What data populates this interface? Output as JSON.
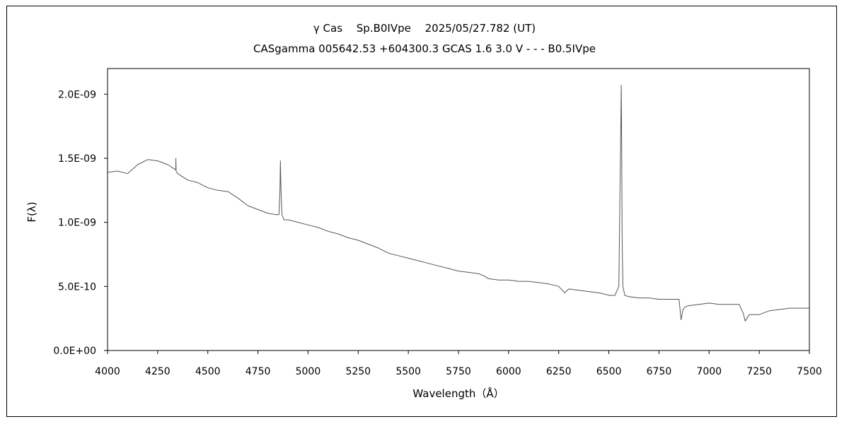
{
  "chart_data": {
    "type": "line",
    "title": "γ Cas　 Sp.B0IVpe　 2025/05/27.782 (UT)",
    "subtitle": "CASgamma 005642.53 +604300.3 GCAS 1.6 3.0 V - - - B0.5IVpe",
    "xlabel": "Wavelength（Å）",
    "ylabel": "F(λ)",
    "xlim": [
      4000,
      7500
    ],
    "ylim": [
      0,
      2.2e-09
    ],
    "x_ticks": [
      4000,
      4250,
      4500,
      4750,
      5000,
      5250,
      5500,
      5750,
      6000,
      6250,
      6500,
      6750,
      7000,
      7250,
      7500
    ],
    "x_tick_labels": [
      "4000",
      "4250",
      "4500",
      "4750",
      "5000",
      "5250",
      "5500",
      "5750",
      "6000",
      "6250",
      "6500",
      "6750",
      "7000",
      "7250",
      "7500"
    ],
    "y_ticks": [
      0,
      5e-10,
      1e-09,
      1.5e-09,
      2e-09
    ],
    "y_tick_labels": [
      "0.0E+00",
      "5.0E-10",
      "1.0E-09",
      "1.5E-09",
      "2.0E-09"
    ],
    "grid": false,
    "legend": "none",
    "series": [
      {
        "color": "#555555",
        "x": [
          4000,
          4050,
          4100,
          4150,
          4200,
          4250,
          4300,
          4340,
          4341,
          4342,
          4350,
          4400,
          4450,
          4500,
          4550,
          4600,
          4650,
          4700,
          4750,
          4800,
          4840,
          4855,
          4860,
          4862,
          4865,
          4870,
          4880,
          4900,
          4950,
          5000,
          5050,
          5100,
          5150,
          5200,
          5250,
          5300,
          5350,
          5400,
          5450,
          5500,
          5550,
          5600,
          5650,
          5700,
          5750,
          5800,
          5850,
          5880,
          5900,
          5950,
          6000,
          6050,
          6100,
          6150,
          6200,
          6250,
          6280,
          6300,
          6350,
          6400,
          6450,
          6480,
          6500,
          6530,
          6550,
          6555,
          6560,
          6562,
          6564,
          6566,
          6570,
          6580,
          6600,
          6650,
          6700,
          6750,
          6850,
          6860,
          6870,
          6880,
          6900,
          6950,
          7000,
          7050,
          7100,
          7150,
          7170,
          7180,
          7200,
          7250,
          7300,
          7350,
          7400,
          7450,
          7500
        ],
        "y": [
          1.39e-09,
          1.4e-09,
          1.38e-09,
          1.45e-09,
          1.49e-09,
          1.48e-09,
          1.45e-09,
          1.41e-09,
          1.5e-09,
          1.4e-09,
          1.38e-09,
          1.33e-09,
          1.31e-09,
          1.27e-09,
          1.25e-09,
          1.24e-09,
          1.19e-09,
          1.13e-09,
          1.1e-09,
          1.07e-09,
          1.06e-09,
          1.06e-09,
          1.25e-09,
          1.48e-09,
          1.25e-09,
          1.06e-09,
          1.02e-09,
          1.02e-09,
          1e-09,
          9.8e-10,
          9.6e-10,
          9.3e-10,
          9.1e-10,
          8.8e-10,
          8.6e-10,
          8.3e-10,
          8e-10,
          7.6e-10,
          7.4e-10,
          7.2e-10,
          7e-10,
          6.8e-10,
          6.6e-10,
          6.4e-10,
          6.2e-10,
          6.1e-10,
          6e-10,
          5.8e-10,
          5.6e-10,
          5.5e-10,
          5.5e-10,
          5.4e-10,
          5.4e-10,
          5.3e-10,
          5.2e-10,
          5e-10,
          4.5e-10,
          4.8e-10,
          4.7e-10,
          4.6e-10,
          4.5e-10,
          4.4e-10,
          4.3e-10,
          4.3e-10,
          5e-10,
          1.2e-09,
          1.8e-09,
          2.07e-09,
          1.6e-09,
          9e-10,
          5e-10,
          4.3e-10,
          4.2e-10,
          4.1e-10,
          4.1e-10,
          4e-10,
          4e-10,
          2.4e-10,
          3.2e-10,
          3.4e-10,
          3.5e-10,
          3.6e-10,
          3.7e-10,
          3.6e-10,
          3.6e-10,
          3.6e-10,
          2.9e-10,
          2.3e-10,
          2.8e-10,
          2.8e-10,
          3.1e-10,
          3.2e-10,
          3.3e-10,
          3.3e-10,
          3.3e-10
        ]
      }
    ]
  }
}
